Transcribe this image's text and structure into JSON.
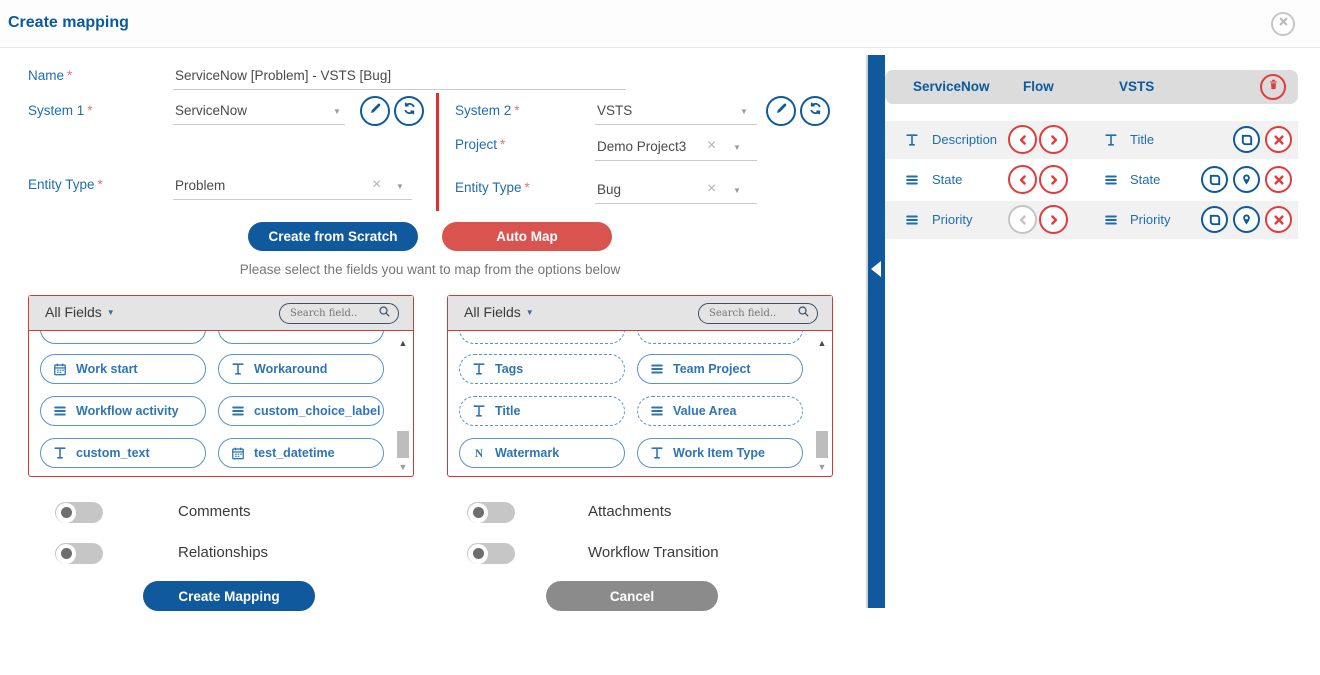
{
  "window": {
    "title": "Create mapping"
  },
  "colors": {
    "primary_blue": "#10599c",
    "label_blue": "#1e6db2",
    "chip_blue": "#2e75b6",
    "button_red": "#d9534f",
    "circle_red": "#e23b3b",
    "panel_border_red": "#cb3d32",
    "cancel_gray": "#8b8b8b"
  },
  "form": {
    "name": {
      "label": "Name",
      "required_mark": "*",
      "value": "ServiceNow [Problem] - VSTS [Bug]"
    },
    "system1": {
      "label": "System 1",
      "required_mark": "*",
      "value": "ServiceNow"
    },
    "entity_type1": {
      "label": "Entity Type",
      "required_mark": "*",
      "value": "Problem"
    },
    "system2": {
      "label": "System 2",
      "required_mark": "*",
      "value": "VSTS"
    },
    "project": {
      "label": "Project",
      "required_mark": "*",
      "value": "Demo Project3"
    },
    "entity_type2": {
      "label": "Entity Type",
      "required_mark": "*",
      "value": "Bug"
    }
  },
  "buttons": {
    "create_from_scratch": "Create from Scratch",
    "auto_map": "Auto Map",
    "create_mapping": "Create Mapping",
    "cancel": "Cancel"
  },
  "helper_text": "Please select the fields you want to map from the options below",
  "panels": {
    "left": {
      "filter_label": "All Fields",
      "search_placeholder": "Search field..",
      "fields": [
        {
          "name": "Work start",
          "type": "datetime",
          "border": "solid"
        },
        {
          "name": "Workaround",
          "type": "text",
          "border": "solid"
        },
        {
          "name": "Workflow activity",
          "type": "choice",
          "border": "solid"
        },
        {
          "name": "custom_choice_label",
          "type": "choice",
          "border": "solid"
        },
        {
          "name": "custom_text",
          "type": "text",
          "border": "solid"
        },
        {
          "name": "test_datetime",
          "type": "datetime",
          "border": "solid"
        }
      ]
    },
    "right": {
      "filter_label": "All Fields",
      "search_placeholder": "Search field..",
      "fields": [
        {
          "name": "Tags",
          "type": "text",
          "border": "dashed"
        },
        {
          "name": "Team Project",
          "type": "choice",
          "border": "solid"
        },
        {
          "name": "Title",
          "type": "text",
          "border": "dashed"
        },
        {
          "name": "Value Area",
          "type": "choice",
          "border": "dashed"
        },
        {
          "name": "Watermark",
          "type": "number",
          "border": "solid"
        },
        {
          "name": "Work Item Type",
          "type": "text",
          "border": "solid"
        }
      ]
    }
  },
  "toggles": [
    {
      "label": "Comments",
      "state": "off"
    },
    {
      "label": "Relationships",
      "state": "off"
    },
    {
      "label": "Attachments",
      "state": "off"
    },
    {
      "label": "Workflow Transition",
      "state": "off"
    }
  ],
  "sidebar": {
    "columns": {
      "source": "ServiceNow",
      "flow": "Flow",
      "target": "VSTS"
    },
    "header_icon": "trash-icon",
    "mappings": [
      {
        "source": "Description",
        "source_type": "text",
        "target": "Title",
        "target_type": "text",
        "flow_left_enabled": true,
        "flow_right_enabled": true,
        "actions": [
          "default-value-icon",
          "remove-icon"
        ]
      },
      {
        "source": "State",
        "source_type": "choice",
        "target": "State",
        "target_type": "choice",
        "flow_left_enabled": true,
        "flow_right_enabled": true,
        "actions": [
          "default-value-icon",
          "location-icon",
          "remove-icon"
        ]
      },
      {
        "source": "Priority",
        "source_type": "choice",
        "target": "Priority",
        "target_type": "choice",
        "flow_left_enabled": false,
        "flow_right_enabled": true,
        "actions": [
          "default-value-icon",
          "location-icon",
          "remove-icon"
        ]
      }
    ]
  }
}
